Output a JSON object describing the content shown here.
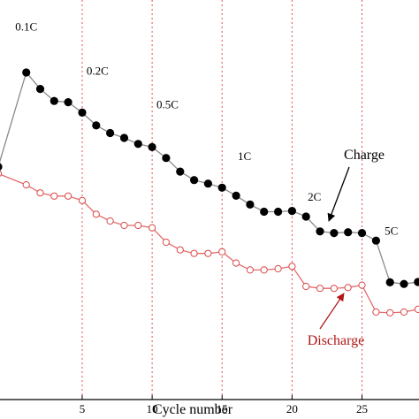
{
  "chart_data": {
    "type": "line",
    "xlabel": "Cycle number",
    "ylabel": "",
    "xlim": [
      -1,
      29.2
    ],
    "ylim": [
      0,
      100
    ],
    "x_ticks": [
      5,
      10,
      15,
      20,
      25
    ],
    "rate_boundaries": [
      5,
      10,
      15,
      20,
      25
    ],
    "rate_labels": [
      {
        "text": "0.1C",
        "x": 1.0,
        "y": 92.0
      },
      {
        "text": "0.2C",
        "x": 6.1,
        "y": 80.9
      },
      {
        "text": "0.5C",
        "x": 11.1,
        "y": 72.6
      },
      {
        "text": "1C",
        "x": 16.6,
        "y": 59.7
      },
      {
        "text": "2C",
        "x": 21.6,
        "y": 49.6
      },
      {
        "text": "5C",
        "x": 27.1,
        "y": 41.1
      }
    ],
    "series": [
      {
        "name": "Charge",
        "color": "#000000",
        "line_color": "#8a8a8a",
        "marker": "filled-circle",
        "x": [
          -1,
          1,
          2,
          3,
          4,
          5,
          6,
          7,
          8,
          9,
          10,
          11,
          12,
          13,
          14,
          15,
          16,
          17,
          18,
          19,
          20,
          21,
          22,
          23,
          24,
          25,
          26,
          27,
          28,
          29
        ],
        "y": [
          58.0,
          81.5,
          77.4,
          74.4,
          74.1,
          71.5,
          68.3,
          66.4,
          65.2,
          63.7,
          62.9,
          60.2,
          56.8,
          54.7,
          53.8,
          52.8,
          50.8,
          48.6,
          46.8,
          46.8,
          47.0,
          45.6,
          41.9,
          41.5,
          41.7,
          41.5,
          39.6,
          29.2,
          28.8,
          29.3
        ]
      },
      {
        "name": "Discharge",
        "color": "#d94a4a",
        "line_color": "#e36a6a",
        "marker": "open-circle",
        "x": [
          -1,
          1,
          2,
          3,
          4,
          5,
          6,
          7,
          8,
          9,
          10,
          11,
          12,
          13,
          14,
          15,
          16,
          17,
          18,
          19,
          20,
          21,
          22,
          23,
          24,
          25,
          26,
          27,
          28,
          29
        ],
        "y": [
          56.3,
          53.5,
          51.5,
          50.7,
          50.7,
          49.6,
          46.2,
          44.5,
          43.4,
          43.4,
          42.8,
          39.2,
          37.3,
          36.4,
          36.4,
          36.8,
          34.0,
          32.3,
          32.3,
          32.6,
          33.2,
          28.2,
          27.7,
          27.7,
          27.9,
          28.5,
          21.8,
          21.6,
          21.8,
          22.5
        ]
      }
    ],
    "annotations": [
      {
        "text": "Charge",
        "color": "#000000"
      },
      {
        "text": "Discharge",
        "color": "#b01818"
      }
    ]
  }
}
